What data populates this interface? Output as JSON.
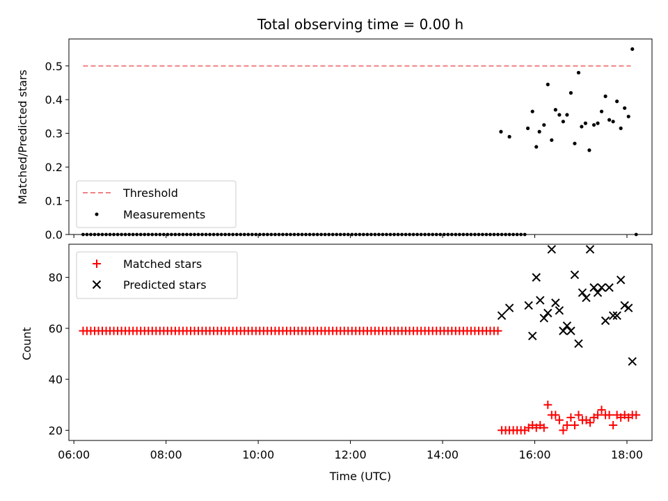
{
  "chart_data": [
    {
      "type": "scatter",
      "title": "Total observing time = 0.00 h",
      "ylabel": "Matched/Predicted stars",
      "xlabel": "",
      "xlim": [
        "06:00",
        "18:30"
      ],
      "ylim": [
        0,
        0.58
      ],
      "yticks": [
        0.0,
        0.1,
        0.2,
        0.3,
        0.4,
        0.5
      ],
      "ytick_labels": [
        "0.0",
        "0.1",
        "0.2",
        "0.3",
        "0.4",
        "0.5"
      ],
      "grid": false,
      "legend_position": "lower-left",
      "colors": {
        "threshold": "#f08080",
        "measurements": "#000000"
      },
      "series": [
        {
          "name": "Threshold",
          "style": "dashed-line",
          "x": [
            "06:12",
            "18:05"
          ],
          "y": [
            0.5,
            0.5
          ]
        },
        {
          "name": "Measurements",
          "style": "dots",
          "x": [
            "15:16",
            "15:27",
            "15:51",
            "15:57",
            "16:02",
            "16:06",
            "16:12",
            "16:17",
            "16:22",
            "16:27",
            "16:32",
            "16:37",
            "16:42",
            "16:47",
            "16:52",
            "16:57",
            "17:01",
            "17:06",
            "17:11",
            "17:17",
            "17:22",
            "17:27",
            "17:32",
            "17:37",
            "17:42",
            "17:47",
            "17:52",
            "17:57",
            "18:02",
            "18:07"
          ],
          "y": [
            0.305,
            0.29,
            0.315,
            0.365,
            0.26,
            0.305,
            0.325,
            0.445,
            0.28,
            0.37,
            0.355,
            0.335,
            0.355,
            0.42,
            0.27,
            0.48,
            0.32,
            0.33,
            0.25,
            0.325,
            0.33,
            0.365,
            0.41,
            0.34,
            0.335,
            0.395,
            0.315,
            0.375,
            0.35,
            0.55
          ],
          "zero_run_from": "06:12",
          "zero_run_to": "15:47",
          "zero_run_step_minutes": 5,
          "extra_zero": [
            "18:12"
          ]
        }
      ]
    },
    {
      "type": "scatter",
      "title": "",
      "xlabel": "Time (UTC)",
      "ylabel": "Count",
      "xlim": [
        "06:00",
        "18:30"
      ],
      "ylim": [
        16,
        93
      ],
      "xticks": [
        "06:00",
        "08:00",
        "10:00",
        "12:00",
        "14:00",
        "16:00",
        "18:00"
      ],
      "yticks": [
        20,
        40,
        60,
        80
      ],
      "ytick_labels": [
        "20",
        "40",
        "60",
        "80"
      ],
      "grid": false,
      "legend_position": "top-left",
      "colors": {
        "matched": "#ff0000",
        "predicted": "#000000"
      },
      "series": [
        {
          "name": "Matched stars",
          "marker": "plus",
          "constant_run": {
            "from": "06:12",
            "to": "15:12",
            "step_minutes": 5,
            "value": 59
          },
          "x": [
            "15:17",
            "15:22",
            "15:27",
            "15:32",
            "15:37",
            "15:42",
            "15:47",
            "15:52",
            "15:57",
            "16:02",
            "16:07",
            "16:12",
            "16:17",
            "16:22",
            "16:27",
            "16:32",
            "16:37",
            "16:42",
            "16:47",
            "16:52",
            "16:57",
            "17:02",
            "17:07",
            "17:12",
            "17:17",
            "17:22",
            "17:27",
            "17:32",
            "17:37",
            "17:42",
            "17:47",
            "17:52",
            "17:57",
            "18:02",
            "18:07",
            "18:12"
          ],
          "y": [
            20,
            20,
            20,
            20,
            20,
            20,
            20,
            21,
            22,
            21,
            22,
            21,
            30,
            26,
            26,
            24,
            20,
            22,
            25,
            22,
            26,
            24,
            24,
            23,
            25,
            26,
            28,
            26,
            26,
            22,
            26,
            25,
            26,
            25,
            26,
            26
          ]
        },
        {
          "name": "Predicted stars",
          "marker": "x",
          "x": [
            "15:17",
            "15:27",
            "15:52",
            "15:57",
            "16:02",
            "16:07",
            "16:12",
            "16:17",
            "16:22",
            "16:27",
            "16:32",
            "16:37",
            "16:42",
            "16:47",
            "16:52",
            "16:57",
            "17:02",
            "17:07",
            "17:12",
            "17:17",
            "17:22",
            "17:27",
            "17:32",
            "17:37",
            "17:42",
            "17:47",
            "17:52",
            "17:57",
            "18:02",
            "18:07"
          ],
          "y": [
            65,
            68,
            69,
            57,
            80,
            71,
            64,
            66,
            91,
            70,
            67,
            59,
            61,
            59,
            81,
            54,
            74,
            72,
            91,
            76,
            74,
            76,
            63,
            76,
            65,
            65,
            79,
            69,
            68,
            47
          ]
        }
      ]
    }
  ]
}
